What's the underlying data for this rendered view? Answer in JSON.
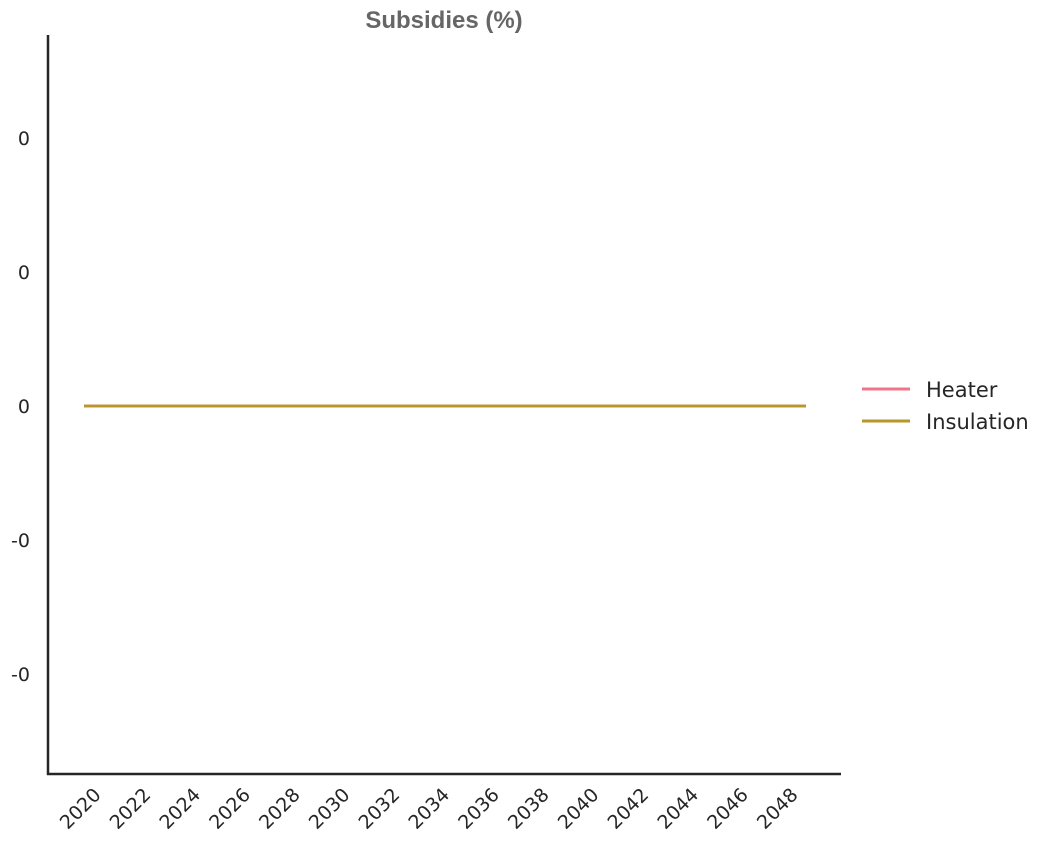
{
  "chart_data": {
    "type": "line",
    "title": "Subsidies (%)",
    "xlabel": "",
    "ylabel": "",
    "x": [
      2020,
      2021,
      2022,
      2023,
      2024,
      2025,
      2026,
      2027,
      2028,
      2029,
      2030,
      2031,
      2032,
      2033,
      2034,
      2035,
      2036,
      2037,
      2038,
      2039,
      2040,
      2041,
      2042,
      2043,
      2044,
      2045,
      2046,
      2047,
      2048,
      2049
    ],
    "x_ticks": [
      "2020",
      "2022",
      "2024",
      "2026",
      "2028",
      "2030",
      "2032",
      "2034",
      "2036",
      "2038",
      "2040",
      "2042",
      "2044",
      "2046",
      "2048"
    ],
    "y_ticks": [
      "0",
      "0",
      "0",
      "-0",
      "-0"
    ],
    "ylim": [
      -0.055,
      0.055
    ],
    "grid": false,
    "legend_position": "right",
    "series": [
      {
        "name": "Heater",
        "color": "#f0758a",
        "values": [
          0,
          0,
          0,
          0,
          0,
          0,
          0,
          0,
          0,
          0,
          0,
          0,
          0,
          0,
          0,
          0,
          0,
          0,
          0,
          0,
          0,
          0,
          0,
          0,
          0,
          0,
          0,
          0,
          0,
          0
        ]
      },
      {
        "name": "Insulation",
        "color": "#b8962a",
        "values": [
          0,
          0,
          0,
          0,
          0,
          0,
          0,
          0,
          0,
          0,
          0,
          0,
          0,
          0,
          0,
          0,
          0,
          0,
          0,
          0,
          0,
          0,
          0,
          0,
          0,
          0,
          0,
          0,
          0,
          0
        ]
      }
    ]
  }
}
